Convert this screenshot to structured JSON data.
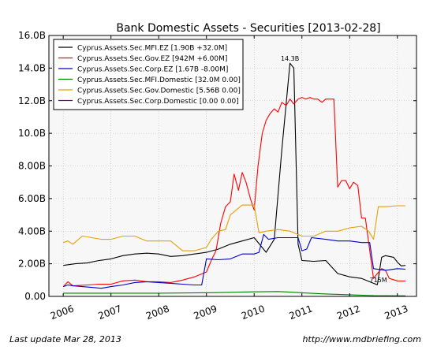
{
  "footer": {
    "left": "Last update Mar 28, 2013",
    "right": "http://www.mdbriefing.com"
  },
  "chart_data": {
    "type": "line",
    "title": "Bank Domestic Assets - Securities  [2013-02-28]",
    "xlabel": "",
    "ylabel": "",
    "xlim": [
      2005.7,
      2013.4
    ],
    "ylim": [
      0,
      16000000000
    ],
    "yticks": [
      0,
      2000000000,
      4000000000,
      6000000000,
      8000000000,
      10000000000,
      12000000000,
      14000000000,
      16000000000
    ],
    "ytick_labels": [
      "0.00",
      "2.00B",
      "4.00B",
      "6.00B",
      "8.00B",
      "10.0B",
      "12.0B",
      "14.0B",
      "16.0B"
    ],
    "xticks": [
      2006,
      2007,
      2008,
      2009,
      2010,
      2011,
      2012,
      2013
    ],
    "xtick_labels": [
      "2006",
      "2007",
      "2008",
      "2009",
      "2010",
      "2011",
      "2012",
      "2013"
    ],
    "grid": true,
    "legend_position": "top-left",
    "annotations": [
      {
        "text": "14.3B",
        "x": 2010.75,
        "y": 14300000000
      },
      {
        "text": "715M",
        "x": 2012.6,
        "y": 715000000
      }
    ],
    "series": [
      {
        "name": "Cyprus.Assets.Sec.MFI.EZ [1.90B +32.0M]",
        "color": "#000000",
        "x": [
          2006.0,
          2006.25,
          2006.5,
          2006.75,
          2007.0,
          2007.25,
          2007.5,
          2007.75,
          2008.0,
          2008.25,
          2008.5,
          2008.75,
          2009.0,
          2009.25,
          2009.5,
          2009.75,
          2010.0,
          2010.25,
          2010.42,
          2010.58,
          2010.75,
          2010.83,
          2010.92,
          2011.0,
          2011.25,
          2011.5,
          2011.75,
          2012.0,
          2012.25,
          2012.5,
          2012.58,
          2012.67,
          2012.75,
          2012.92,
          2013.0,
          2013.08,
          2013.17
        ],
        "y": [
          1900000000,
          2000000000,
          2050000000,
          2200000000,
          2300000000,
          2500000000,
          2600000000,
          2650000000,
          2600000000,
          2450000000,
          2500000000,
          2600000000,
          2700000000,
          2900000000,
          3200000000,
          3400000000,
          3600000000,
          2700000000,
          3500000000,
          9000000000,
          14300000000,
          14000000000,
          3200000000,
          2200000000,
          2150000000,
          2200000000,
          1400000000,
          1200000000,
          1100000000,
          800000000,
          715000000,
          2400000000,
          2500000000,
          2400000000,
          2100000000,
          1870000000,
          1900000000
        ]
      },
      {
        "name": "Cyprus.Assets.Sec.Gov.EZ [942M +6.00M]",
        "color": "#ff0000",
        "x": [
          2006.0,
          2006.1,
          2006.2,
          2006.5,
          2006.75,
          2007.0,
          2007.25,
          2007.5,
          2007.75,
          2008.0,
          2008.25,
          2008.5,
          2008.75,
          2009.0,
          2009.1,
          2009.2,
          2009.3,
          2009.4,
          2009.5,
          2009.58,
          2009.67,
          2009.75,
          2009.83,
          2009.92,
          2010.0,
          2010.08,
          2010.17,
          2010.25,
          2010.33,
          2010.42,
          2010.5,
          2010.58,
          2010.67,
          2010.75,
          2010.83,
          2010.92,
          2011.0,
          2011.08,
          2011.17,
          2011.25,
          2011.33,
          2011.42,
          2011.5,
          2011.58,
          2011.67,
          2011.75,
          2011.83,
          2011.92,
          2012.0,
          2012.08,
          2012.17,
          2012.25,
          2012.33,
          2012.5,
          2012.58,
          2012.67,
          2012.75,
          2012.83,
          2013.0,
          2013.17
        ],
        "y": [
          600000000,
          900000000,
          650000000,
          700000000,
          750000000,
          750000000,
          950000000,
          1000000000,
          900000000,
          900000000,
          850000000,
          1000000000,
          1200000000,
          1500000000,
          2200000000,
          2800000000,
          4500000000,
          5500000000,
          5800000000,
          7500000000,
          6500000000,
          7600000000,
          7000000000,
          6000000000,
          5300000000,
          8000000000,
          10000000000,
          10800000000,
          11200000000,
          11500000000,
          11300000000,
          11900000000,
          11700000000,
          12100000000,
          11800000000,
          12100000000,
          12200000000,
          12100000000,
          12200000000,
          12100000000,
          12100000000,
          11900000000,
          12100000000,
          12100000000,
          12100000000,
          6700000000,
          7100000000,
          7100000000,
          6600000000,
          7000000000,
          6800000000,
          4800000000,
          4800000000,
          1100000000,
          1400000000,
          1700000000,
          1600000000,
          1100000000,
          950000000,
          942000000
        ]
      },
      {
        "name": "Cyprus.Assets.Sec.Corp.EZ [1.67B -8.00M]",
        "color": "#0000cc",
        "x": [
          2006.0,
          2006.1,
          2006.2,
          2006.4,
          2006.6,
          2006.8,
          2007.0,
          2007.25,
          2007.5,
          2007.75,
          2008.0,
          2008.25,
          2008.5,
          2008.75,
          2008.9,
          2009.0,
          2009.25,
          2009.5,
          2009.75,
          2010.0,
          2010.1,
          2010.2,
          2010.3,
          2010.5,
          2010.75,
          2010.92,
          2011.0,
          2011.1,
          2011.2,
          2011.5,
          2011.75,
          2012.0,
          2012.25,
          2012.42,
          2012.5,
          2012.75,
          2013.0,
          2013.17
        ],
        "y": [
          600000000,
          700000000,
          650000000,
          600000000,
          550000000,
          500000000,
          600000000,
          700000000,
          850000000,
          900000000,
          850000000,
          800000000,
          750000000,
          700000000,
          700000000,
          2300000000,
          2250000000,
          2300000000,
          2600000000,
          2600000000,
          2700000000,
          3800000000,
          3500000000,
          3600000000,
          3600000000,
          3600000000,
          2800000000,
          2900000000,
          3600000000,
          3500000000,
          3400000000,
          3400000000,
          3300000000,
          3300000000,
          1700000000,
          1600000000,
          1700000000,
          1670000000
        ]
      },
      {
        "name": "Cyprus.Assets.Sec.MFI.Domestic [32.0M 0.00]",
        "color": "#008000",
        "x": [
          2006.0,
          2007.0,
          2008.0,
          2009.0,
          2009.5,
          2010.0,
          2010.5,
          2011.0,
          2011.5,
          2012.0,
          2012.5,
          2013.17
        ],
        "y": [
          200000000,
          200000000,
          200000000,
          220000000,
          250000000,
          280000000,
          300000000,
          220000000,
          150000000,
          100000000,
          50000000,
          32000000
        ]
      },
      {
        "name": "Cyprus.Assets.Sec.Gov.Domestic [5.56B 0.00]",
        "color": "#e6a000",
        "x": [
          2006.0,
          2006.1,
          2006.2,
          2006.4,
          2006.6,
          2006.8,
          2007.0,
          2007.25,
          2007.5,
          2007.75,
          2008.0,
          2008.25,
          2008.5,
          2008.75,
          2009.0,
          2009.1,
          2009.25,
          2009.4,
          2009.5,
          2009.75,
          2010.0,
          2010.1,
          2010.25,
          2010.5,
          2010.75,
          2011.0,
          2011.25,
          2011.5,
          2011.75,
          2012.0,
          2012.25,
          2012.4,
          2012.5,
          2012.6,
          2012.75,
          2013.0,
          2013.17
        ],
        "y": [
          3300000000,
          3400000000,
          3200000000,
          3700000000,
          3600000000,
          3500000000,
          3500000000,
          3700000000,
          3700000000,
          3400000000,
          3400000000,
          3400000000,
          2800000000,
          2800000000,
          3000000000,
          3500000000,
          4000000000,
          4100000000,
          5000000000,
          5600000000,
          5600000000,
          3900000000,
          4000000000,
          4100000000,
          4000000000,
          3700000000,
          3700000000,
          4000000000,
          4000000000,
          4200000000,
          4300000000,
          4000000000,
          3500000000,
          5500000000,
          5500000000,
          5560000000,
          5560000000
        ]
      },
      {
        "name": "Cyprus.Assets.Sec.Corp.Domestic [0.00 0.00]",
        "color": "#800080",
        "x": [
          2006.0,
          2013.17
        ],
        "y": [
          0,
          0
        ]
      }
    ]
  }
}
